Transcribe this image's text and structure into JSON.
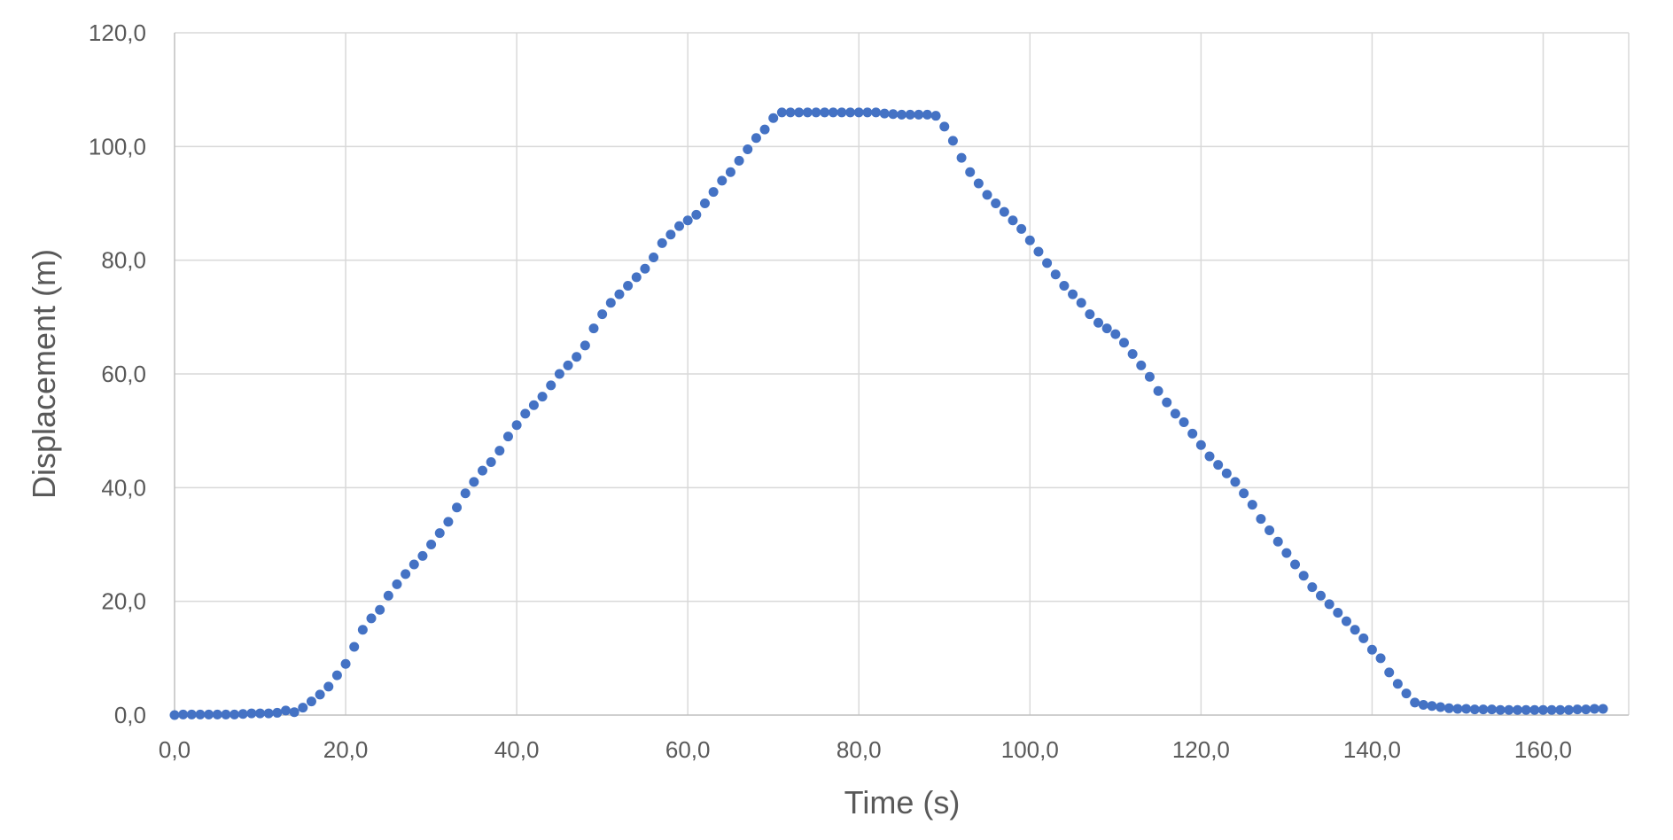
{
  "chart_data": {
    "type": "scatter",
    "xlabel": "Time (s)",
    "ylabel": "Displacement (m)",
    "xlim": [
      0,
      170
    ],
    "ylim": [
      0,
      120
    ],
    "x_ticks": [
      0,
      20,
      40,
      60,
      80,
      100,
      120,
      140,
      160
    ],
    "y_ticks": [
      0,
      20,
      40,
      60,
      80,
      100,
      120
    ],
    "x_tick_labels": [
      "0,0",
      "20,0",
      "40,0",
      "60,0",
      "80,0",
      "100,0",
      "120,0",
      "140,0",
      "160,0"
    ],
    "y_tick_labels": [
      "0,0",
      "20,0",
      "40,0",
      "60,0",
      "80,0",
      "100,0",
      "120,0"
    ],
    "grid": true,
    "legend": "none",
    "marker_color": "#4472c4",
    "series": [
      {
        "points": [
          [
            0,
            0.0
          ],
          [
            1,
            0.1
          ],
          [
            2,
            0.1
          ],
          [
            3,
            0.1
          ],
          [
            4,
            0.1
          ],
          [
            5,
            0.1
          ],
          [
            6,
            0.1
          ],
          [
            7,
            0.1
          ],
          [
            8,
            0.2
          ],
          [
            9,
            0.3
          ],
          [
            10,
            0.3
          ],
          [
            11,
            0.3
          ],
          [
            12,
            0.4
          ],
          [
            13,
            0.8
          ],
          [
            14,
            0.5
          ],
          [
            15,
            1.3
          ],
          [
            16,
            2.4
          ],
          [
            17,
            3.6
          ],
          [
            18,
            5.0
          ],
          [
            19,
            7.0
          ],
          [
            20,
            9.0
          ],
          [
            21,
            12.0
          ],
          [
            22,
            15.0
          ],
          [
            23,
            17.0
          ],
          [
            24,
            18.5
          ],
          [
            25,
            21.0
          ],
          [
            26,
            23.0
          ],
          [
            27,
            24.8
          ],
          [
            28,
            26.5
          ],
          [
            29,
            28.0
          ],
          [
            30,
            30.0
          ],
          [
            31,
            32.0
          ],
          [
            32,
            34.0
          ],
          [
            33,
            36.5
          ],
          [
            34,
            39.0
          ],
          [
            35,
            41.0
          ],
          [
            36,
            43.0
          ],
          [
            37,
            44.5
          ],
          [
            38,
            46.5
          ],
          [
            39,
            49.0
          ],
          [
            40,
            51.0
          ],
          [
            41,
            53.0
          ],
          [
            42,
            54.5
          ],
          [
            43,
            56.0
          ],
          [
            44,
            58.0
          ],
          [
            45,
            60.0
          ],
          [
            46,
            61.5
          ],
          [
            47,
            63.0
          ],
          [
            48,
            65.0
          ],
          [
            49,
            68.0
          ],
          [
            50,
            70.5
          ],
          [
            51,
            72.5
          ],
          [
            52,
            74.0
          ],
          [
            53,
            75.5
          ],
          [
            54,
            77.0
          ],
          [
            55,
            78.5
          ],
          [
            56,
            80.5
          ],
          [
            57,
            83.0
          ],
          [
            58,
            84.5
          ],
          [
            59,
            86.0
          ],
          [
            60,
            87.0
          ],
          [
            61,
            88.0
          ],
          [
            62,
            90.0
          ],
          [
            63,
            92.0
          ],
          [
            64,
            94.0
          ],
          [
            65,
            95.5
          ],
          [
            66,
            97.5
          ],
          [
            67,
            99.5
          ],
          [
            68,
            101.5
          ],
          [
            69,
            103.0
          ],
          [
            70,
            105.0
          ],
          [
            71,
            106.0
          ],
          [
            72,
            106.0
          ],
          [
            73,
            106.0
          ],
          [
            74,
            106.0
          ],
          [
            75,
            106.0
          ],
          [
            76,
            106.0
          ],
          [
            77,
            106.0
          ],
          [
            78,
            106.0
          ],
          [
            79,
            106.0
          ],
          [
            80,
            106.0
          ],
          [
            81,
            106.0
          ],
          [
            82,
            106.0
          ],
          [
            83,
            105.8
          ],
          [
            84,
            105.7
          ],
          [
            85,
            105.6
          ],
          [
            86,
            105.6
          ],
          [
            87,
            105.6
          ],
          [
            88,
            105.6
          ],
          [
            89,
            105.4
          ],
          [
            90,
            103.5
          ],
          [
            91,
            101.0
          ],
          [
            92,
            98.0
          ],
          [
            93,
            95.5
          ],
          [
            94,
            93.5
          ],
          [
            95,
            91.5
          ],
          [
            96,
            90.0
          ],
          [
            97,
            88.5
          ],
          [
            98,
            87.0
          ],
          [
            99,
            85.5
          ],
          [
            100,
            83.5
          ],
          [
            101,
            81.5
          ],
          [
            102,
            79.5
          ],
          [
            103,
            77.5
          ],
          [
            104,
            75.5
          ],
          [
            105,
            74.0
          ],
          [
            106,
            72.5
          ],
          [
            107,
            70.5
          ],
          [
            108,
            69.0
          ],
          [
            109,
            68.0
          ],
          [
            110,
            67.0
          ],
          [
            111,
            65.5
          ],
          [
            112,
            63.5
          ],
          [
            113,
            61.5
          ],
          [
            114,
            59.5
          ],
          [
            115,
            57.0
          ],
          [
            116,
            55.0
          ],
          [
            117,
            53.0
          ],
          [
            118,
            51.5
          ],
          [
            119,
            49.5
          ],
          [
            120,
            47.5
          ],
          [
            121,
            45.5
          ],
          [
            122,
            44.0
          ],
          [
            123,
            42.5
          ],
          [
            124,
            41.0
          ],
          [
            125,
            39.0
          ],
          [
            126,
            37.0
          ],
          [
            127,
            34.5
          ],
          [
            128,
            32.5
          ],
          [
            129,
            30.5
          ],
          [
            130,
            28.5
          ],
          [
            131,
            26.5
          ],
          [
            132,
            24.5
          ],
          [
            133,
            22.5
          ],
          [
            134,
            21.0
          ],
          [
            135,
            19.5
          ],
          [
            136,
            18.0
          ],
          [
            137,
            16.5
          ],
          [
            138,
            15.0
          ],
          [
            139,
            13.5
          ],
          [
            140,
            11.5
          ],
          [
            141,
            10.0
          ],
          [
            142,
            7.5
          ],
          [
            143,
            5.5
          ],
          [
            144,
            3.8
          ],
          [
            145,
            2.2
          ],
          [
            146,
            1.8
          ],
          [
            147,
            1.6
          ],
          [
            148,
            1.4
          ],
          [
            149,
            1.2
          ],
          [
            150,
            1.1
          ],
          [
            151,
            1.1
          ],
          [
            152,
            1.0
          ],
          [
            153,
            1.0
          ],
          [
            154,
            1.0
          ],
          [
            155,
            0.9
          ],
          [
            156,
            0.9
          ],
          [
            157,
            0.9
          ],
          [
            158,
            0.9
          ],
          [
            159,
            0.9
          ],
          [
            160,
            0.9
          ],
          [
            161,
            0.9
          ],
          [
            162,
            0.9
          ],
          [
            163,
            0.9
          ],
          [
            164,
            1.0
          ],
          [
            165,
            1.0
          ],
          [
            166,
            1.1
          ],
          [
            167,
            1.1
          ]
        ]
      }
    ]
  }
}
